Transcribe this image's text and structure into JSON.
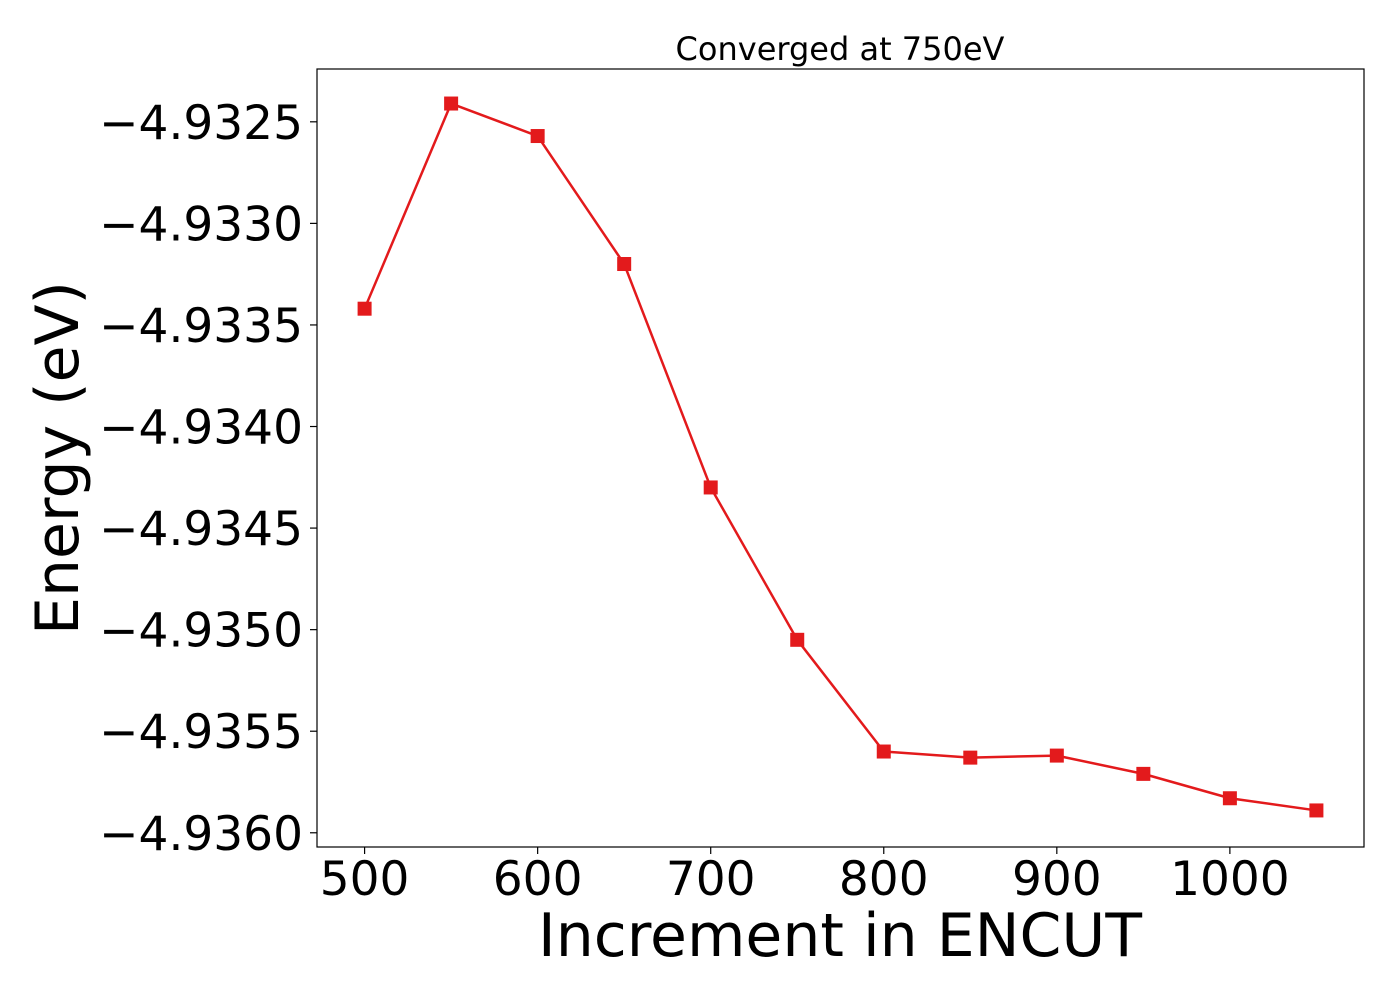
{
  "chart_data": {
    "type": "line",
    "title": "Converged at 750eV",
    "xlabel": "Increment in ENCUT",
    "ylabel": "Energy (eV)",
    "x": [
      500,
      550,
      600,
      650,
      700,
      750,
      800,
      850,
      900,
      950,
      1000,
      1050
    ],
    "series": [
      {
        "values": [
          -4.93342,
          -4.93241,
          -4.93257,
          -4.9332,
          -4.9343,
          -4.93505,
          -4.9356,
          -4.93563,
          -4.93562,
          -4.93571,
          -4.93583,
          -4.93589
        ],
        "color": "#e31a1c",
        "marker": "square"
      }
    ],
    "xlim": [
      472.5,
      1077.5
    ],
    "ylim": [
      -4.93607,
      -4.93224
    ],
    "x_ticks": [
      500,
      600,
      700,
      800,
      900,
      1000
    ],
    "x_tick_labels": [
      "500",
      "600",
      "700",
      "800",
      "900",
      "1000"
    ],
    "y_ticks": [
      -4.9325,
      -4.933,
      -4.9335,
      -4.934,
      -4.9345,
      -4.935,
      -4.9355,
      -4.936
    ],
    "y_tick_labels": [
      "−4.9325",
      "−4.9330",
      "−4.9335",
      "−4.9340",
      "−4.9345",
      "−4.9350",
      "−4.9355",
      "−4.9360"
    ],
    "grid": false,
    "legend": "none"
  }
}
